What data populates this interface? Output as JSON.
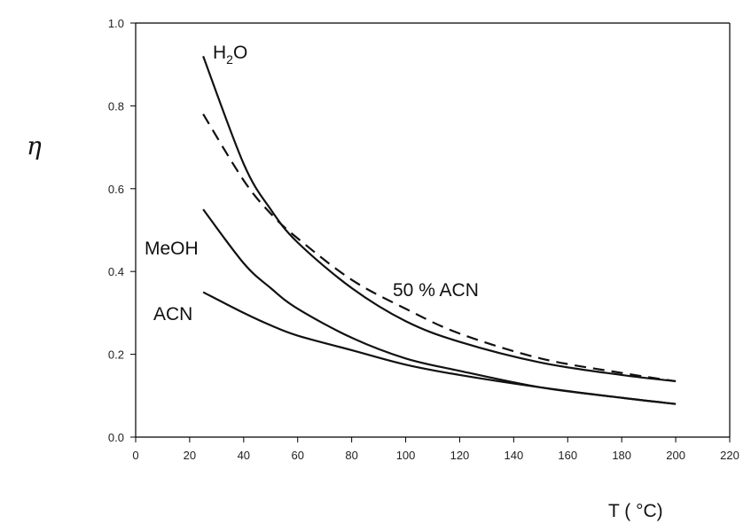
{
  "chart_data": {
    "type": "line",
    "title": "",
    "xlabel": "T ( °C)",
    "ylabel": "η",
    "xlim": [
      0,
      220
    ],
    "ylim": [
      0,
      1.0
    ],
    "xticks": [
      "0",
      "20",
      "40",
      "60",
      "80",
      "100",
      "120",
      "140",
      "160",
      "180",
      "200",
      "220"
    ],
    "yticks": [
      "0.0",
      "0.2",
      "0.4",
      "0.6",
      "0.8",
      "1.0"
    ],
    "grid": false,
    "legend": "none",
    "x": [
      25,
      40,
      50,
      60,
      80,
      100,
      120,
      150,
      180,
      200
    ],
    "series": [
      {
        "name": "H2O",
        "label_main": "H",
        "label_sub": "2",
        "label_tail": "O",
        "style": "solid",
        "values": [
          0.92,
          0.66,
          0.55,
          0.47,
          0.36,
          0.28,
          0.23,
          0.18,
          0.15,
          0.135
        ]
      },
      {
        "name": "50 % ACN",
        "label_main": "50 % ACN",
        "style": "dashed",
        "values": [
          0.78,
          0.62,
          0.54,
          0.48,
          0.38,
          0.31,
          0.25,
          0.19,
          0.155,
          0.135
        ]
      },
      {
        "name": "MeOH",
        "label_main": "MeOH",
        "style": "solid",
        "values": [
          0.55,
          0.42,
          0.36,
          0.31,
          0.24,
          0.19,
          0.16,
          0.12,
          0.095,
          0.08
        ]
      },
      {
        "name": "ACN",
        "label_main": "ACN",
        "style": "solid",
        "values": [
          0.35,
          0.3,
          0.27,
          0.245,
          0.21,
          0.175,
          0.15,
          0.12,
          0.095,
          0.08
        ]
      }
    ]
  }
}
